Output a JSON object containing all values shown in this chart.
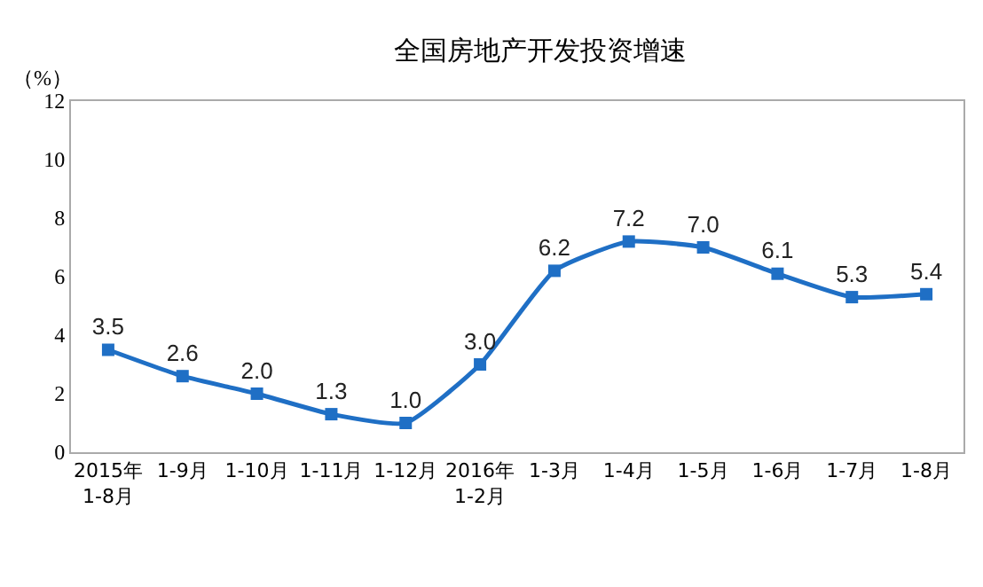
{
  "chart_data": {
    "type": "line",
    "title": "全国房地产开发投资增速",
    "ylabel": "（%）",
    "categories": [
      "2015年\n1-8月",
      "1-9月",
      "1-10月",
      "1-11月",
      "1-12月",
      "2016年\n1-2月",
      "1-3月",
      "1-4月",
      "1-5月",
      "1-6月",
      "1-7月",
      "1-8月"
    ],
    "series": [
      {
        "color": "#1f6fc5",
        "values": [
          3.5,
          2.6,
          2.0,
          1.3,
          1.0,
          3.0,
          6.2,
          7.2,
          7.0,
          6.1,
          5.3,
          5.4
        ],
        "value_labels": [
          "3.5",
          "2.6",
          "2.0",
          "1.3",
          "1.0",
          "3.0",
          "6.2",
          "7.2",
          "7.0",
          "6.1",
          "5.3",
          "5.4"
        ]
      }
    ],
    "ylim": [
      0,
      12
    ],
    "yticks": [
      0,
      2,
      4,
      6,
      8,
      10,
      12
    ],
    "grid": false,
    "marker": "square",
    "line_style": "solid"
  }
}
